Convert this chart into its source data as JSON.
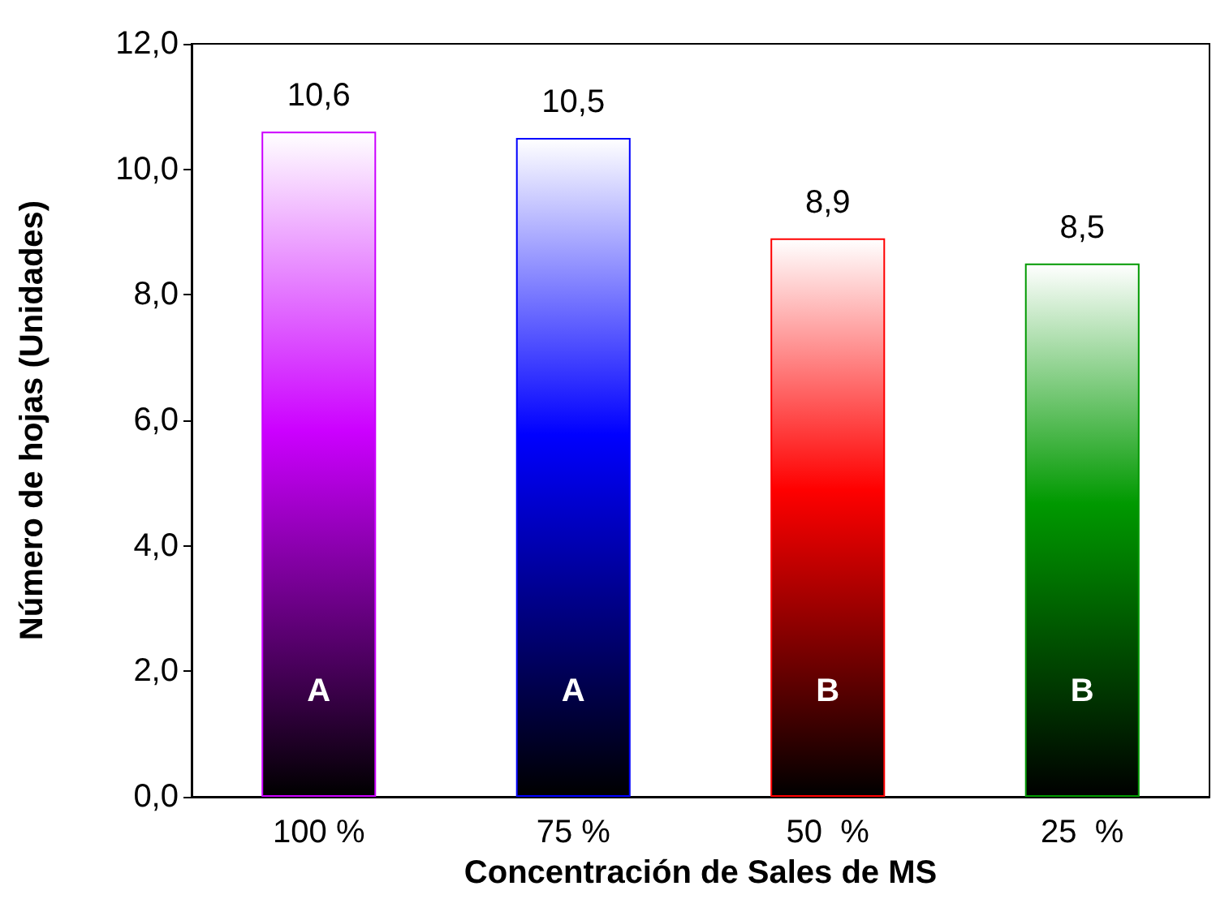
{
  "chart_data": {
    "type": "bar",
    "xlabel": "Concentración de Sales de MS",
    "ylabel": "Número de hojas (Unidades)",
    "categories": [
      "100 %",
      "75 %",
      "50  %",
      "25  %"
    ],
    "values": [
      10.6,
      10.5,
      8.9,
      8.5
    ],
    "colors": [
      "#cc00ff",
      "#0000ff",
      "#ff0000",
      "#009900"
    ],
    "value_labels": [
      "10,6",
      "10,5",
      "8,9",
      "8,5"
    ],
    "ylim": [
      0,
      12
    ],
    "yticks": [
      {
        "value": 0,
        "label": "0,0"
      },
      {
        "value": 2,
        "label": "2,0"
      },
      {
        "value": 4,
        "label": "4,0"
      },
      {
        "value": 6,
        "label": "6,0"
      },
      {
        "value": 8,
        "label": "8,0"
      },
      {
        "value": 10,
        "label": "10,0"
      },
      {
        "value": 12,
        "label": "12,0"
      }
    ],
    "grid": false,
    "annotations": [
      "A",
      "A",
      "B",
      "B"
    ]
  }
}
